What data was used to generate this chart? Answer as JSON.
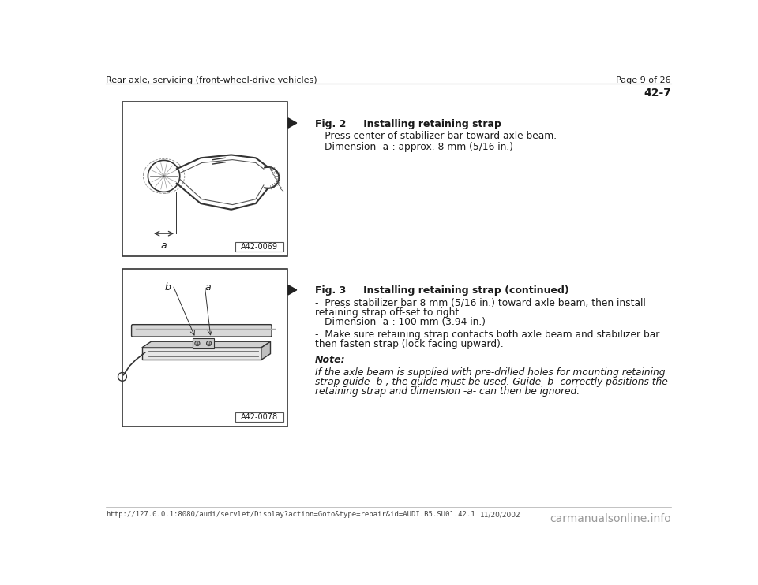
{
  "page_bg": "#ffffff",
  "header_left": "Rear axle, servicing (front-wheel-drive vehicles)",
  "header_right": "Page 9 of 26",
  "page_number": "42-7",
  "fig2_title_bold": "Fig. 2     Installing retaining strap",
  "fig2_bullet1": "-  Press center of stabilizer bar toward axle beam.",
  "fig2_indent1": "Dimension -a-: approx. 8 mm (5/16 in.)",
  "fig2_label": "A42-0069",
  "fig3_title_bold": "Fig. 3     Installing retaining strap (continued)",
  "fig3_bullet1": "-  Press stabilizer bar 8 mm (5/16 in.) toward axle beam, then install",
  "fig3_bullet1b": "    retaining strap off-set to right.",
  "fig3_indent1": "Dimension -a-: 100 mm (3.94 in.)",
  "fig3_bullet2": "-  Make sure retaining strap contacts both axle beam and stabilizer bar",
  "fig3_bullet2b": "    then fasten strap (lock facing upward).",
  "fig3_label": "A42-0078",
  "note_title": "Note:",
  "note_line1": "If the axle beam is supplied with pre-drilled holes for mounting retaining",
  "note_line2": "strap guide -b-, the guide must be used. Guide -b- correctly positions the",
  "note_line3": "retaining strap and dimension -a- can then be ignored.",
  "footer_url": "http://127.0.0.1:8080/audi/servlet/Display?action=Goto&type=repair&id=AUDI.B5.SU01.42.1",
  "footer_date": "11/20/2002",
  "footer_watermark": "carmanualsonline.info",
  "text_color": "#1a1a1a",
  "box_edge_color": "#333333",
  "line_color": "#555555"
}
